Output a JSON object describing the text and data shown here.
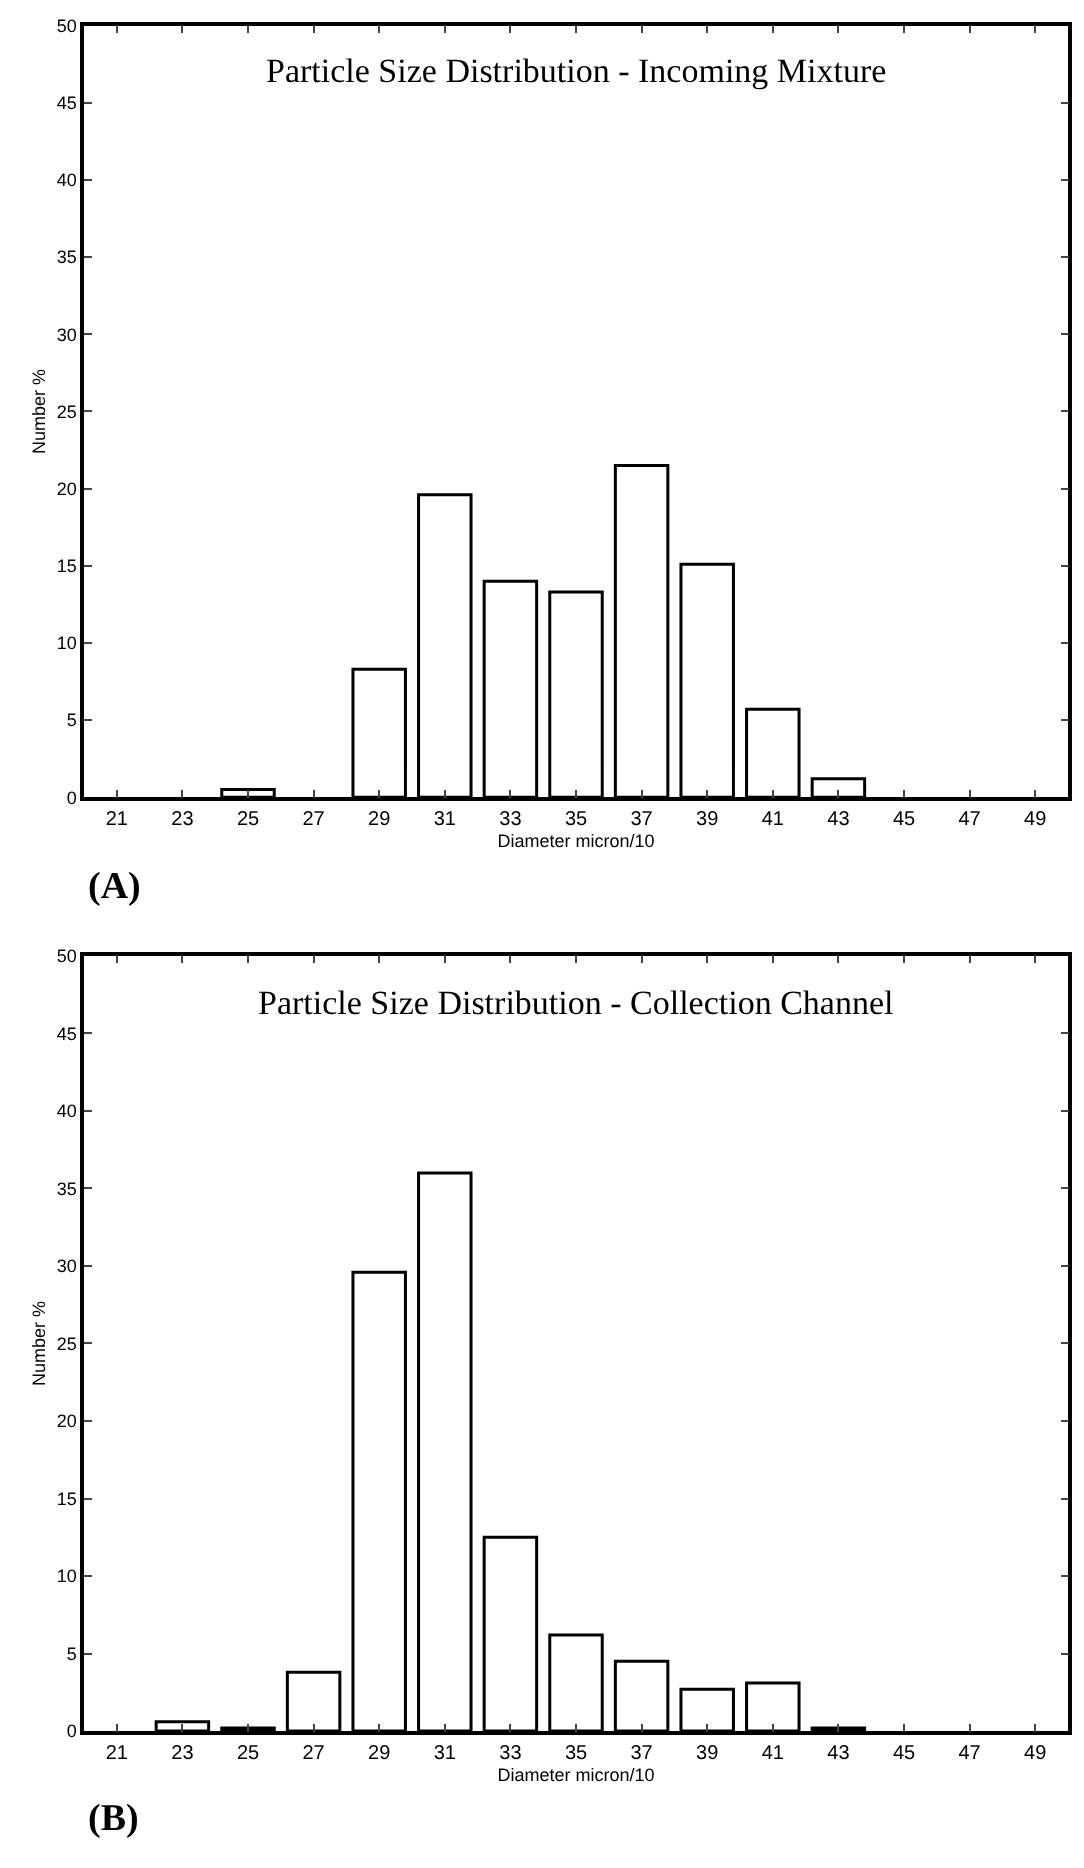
{
  "chart_data": [
    {
      "type": "bar",
      "title": "Particle Size Distribution - Incoming Mixture",
      "xlabel": "Diameter micron/10",
      "ylabel": "Number %",
      "categories": [
        "21",
        "23",
        "25",
        "27",
        "29",
        "31",
        "33",
        "35",
        "37",
        "39",
        "41",
        "43",
        "45",
        "47",
        "49"
      ],
      "values": [
        0,
        0,
        0.5,
        0,
        8.3,
        19.6,
        14,
        13.3,
        21.5,
        15.1,
        5.7,
        1.2,
        0,
        0,
        0
      ],
      "color": "#ffffff",
      "ylim": [
        0,
        50
      ],
      "yticks": [
        0,
        5,
        10,
        15,
        20,
        25,
        30,
        35,
        40,
        45,
        50
      ],
      "annotations": [
        "(A)"
      ]
    },
    {
      "type": "bar",
      "title": "Particle Size Distribution - Collection Channel",
      "xlabel": "Diameter micron/10",
      "ylabel": "Number %",
      "categories": [
        "21",
        "23",
        "25",
        "27",
        "29",
        "31",
        "33",
        "35",
        "37",
        "39",
        "41",
        "43",
        "45",
        "47",
        "49"
      ],
      "values": [
        0,
        0.6,
        0.2,
        3.8,
        29.6,
        36,
        12.5,
        6.2,
        4.5,
        2.7,
        3.1,
        0.2,
        0,
        0,
        0
      ],
      "color": "#ffffff",
      "ylim": [
        0,
        50
      ],
      "yticks": [
        0,
        5,
        10,
        15,
        20,
        25,
        30,
        35,
        40,
        45,
        50
      ],
      "annotations": [
        "(B)"
      ]
    }
  ]
}
